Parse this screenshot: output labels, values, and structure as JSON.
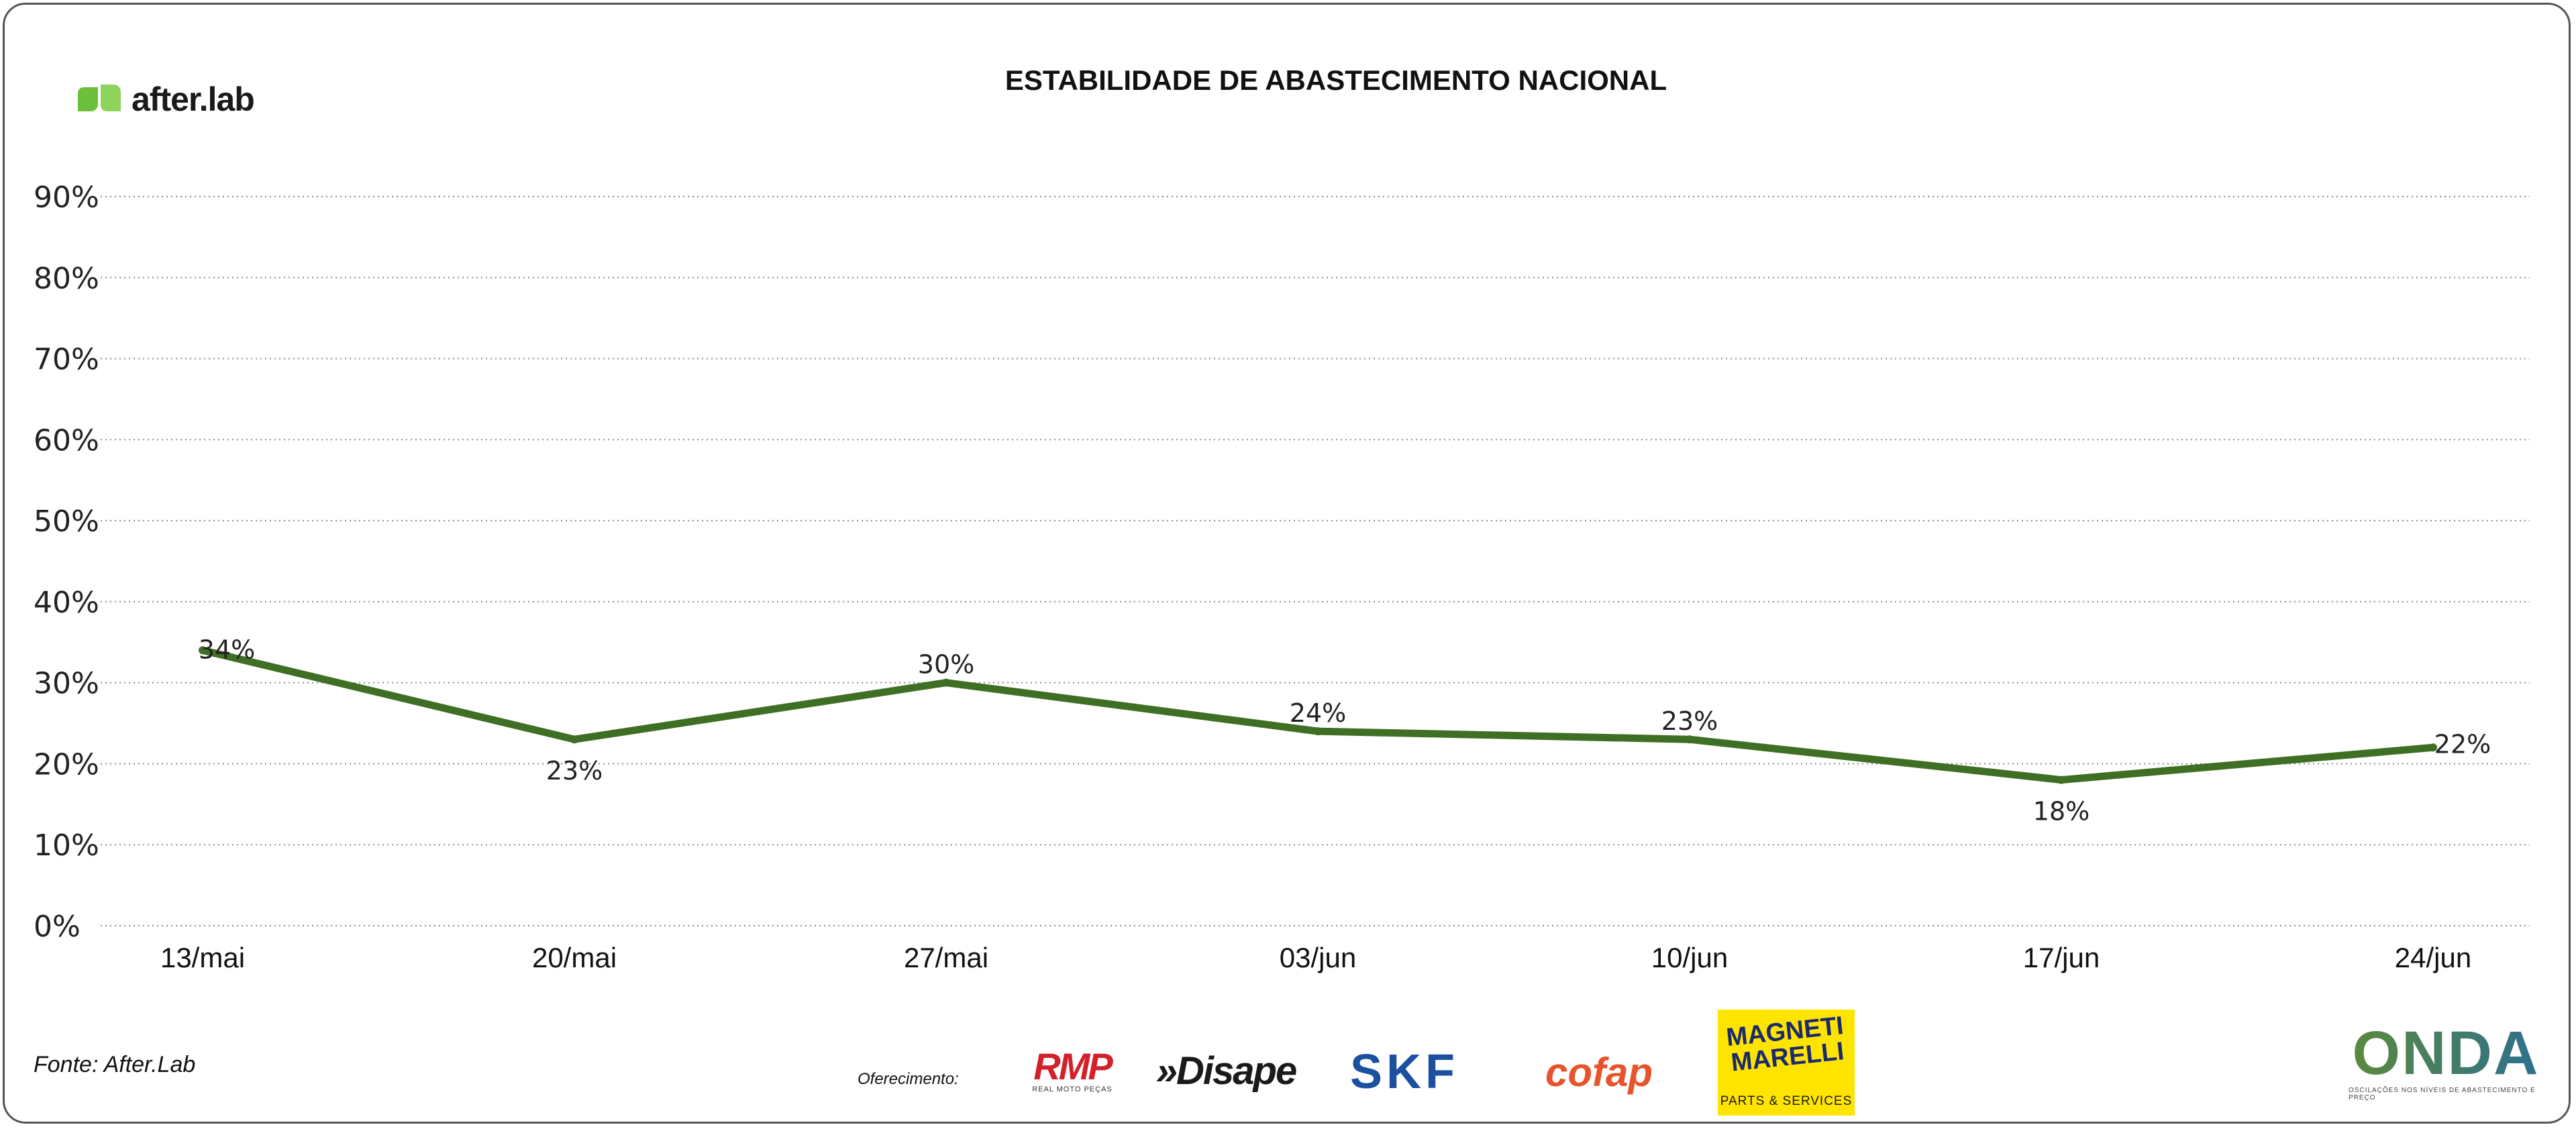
{
  "brand": {
    "name": "after.lab",
    "icon": "afterlab-logo-icon",
    "color": "#6bbf3a"
  },
  "chart_data": {
    "type": "line",
    "title": "ESTABILIDADE DE ABASTECIMENTO NACIONAL",
    "xlabel": "",
    "ylabel": "",
    "categories": [
      "13/mai",
      "20/mai",
      "27/mai",
      "03/jun",
      "10/jun",
      "17/jun",
      "24/jun"
    ],
    "series": [
      {
        "values": [
          34,
          23,
          30,
          24,
          23,
          18,
          22
        ],
        "color": "#3f6f24"
      }
    ],
    "data_labels": [
      "34%",
      "23%",
      "30%",
      "24%",
      "23%",
      "18%",
      "22%"
    ],
    "ylim": [
      0,
      90
    ],
    "yticks": [
      0,
      10,
      20,
      30,
      40,
      50,
      60,
      70,
      80,
      90
    ],
    "ytick_labels": [
      "0%",
      "10%",
      "20%",
      "30%",
      "40%",
      "50%",
      "60%",
      "70%",
      "80%",
      "90%"
    ],
    "grid": "horizontal dotted",
    "legend": "none"
  },
  "footer": {
    "source": "Fonte: After.Lab",
    "sponsor_label": "Oferecimento:",
    "sponsors": {
      "rmp": {
        "name": "RMP",
        "sub": "REAL MOTO PEÇAS",
        "color": "#d3202a"
      },
      "disape": {
        "name": "»Disape",
        "color": "#1a1a1a"
      },
      "skf": {
        "name": "SKF",
        "color": "#1b4fa0"
      },
      "cofap": {
        "name": "cofap",
        "color": "#e8532b"
      },
      "magneti": {
        "name": "MAGNETI MARELLI",
        "sub": "PARTS & SERVICES",
        "color": "#ffe400"
      },
      "onda": {
        "name": "ONDA",
        "sub": "OSCILAÇÕES NOS NÍVEIS DE ABASTECIMENTO E PREÇO"
      }
    }
  }
}
